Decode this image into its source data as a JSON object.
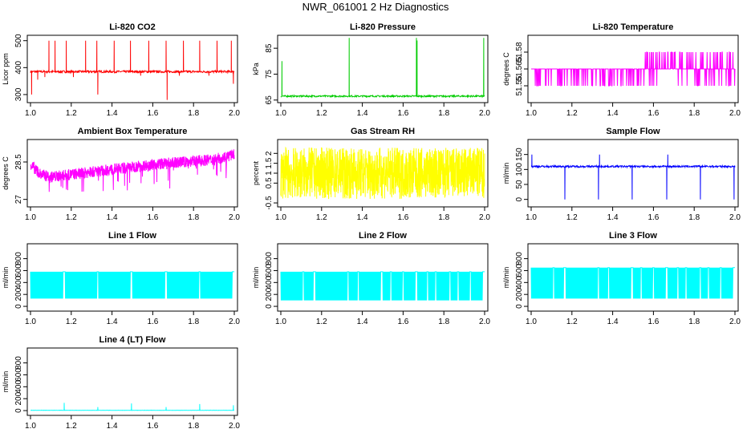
{
  "title": "NWR_061001  2 Hz Diagnostics",
  "chart_data": [
    {
      "type": "line",
      "title": "Li-820 CO2",
      "xlabel": "",
      "ylabel": "Licor ppm",
      "xlim": [
        1.0,
        2.0
      ],
      "xticks": [
        1.0,
        1.2,
        1.4,
        1.6,
        1.8,
        2.0
      ],
      "ylim": [
        270,
        520
      ],
      "yticks": [
        300,
        400,
        500
      ],
      "series": [
        {
          "color": "#ff0000",
          "baseline": 385,
          "noise": 4,
          "spikes": [
            [
              1.005,
              300
            ],
            [
              1.035,
              355
            ],
            [
              1.07,
              365
            ],
            [
              1.09,
              500
            ],
            [
              1.12,
              500
            ],
            [
              1.175,
              500
            ],
            [
              1.21,
              365
            ],
            [
              1.27,
              500
            ],
            [
              1.325,
              500
            ],
            [
              1.33,
              300
            ],
            [
              1.41,
              500
            ],
            [
              1.49,
              500
            ],
            [
              1.54,
              370
            ],
            [
              1.58,
              500
            ],
            [
              1.665,
              500
            ],
            [
              1.67,
              280
            ],
            [
              1.73,
              370
            ],
            [
              1.75,
              500
            ],
            [
              1.83,
              500
            ],
            [
              1.875,
              370
            ],
            [
              1.915,
              500
            ],
            [
              1.985,
              500
            ],
            [
              1.995,
              340
            ]
          ]
        }
      ]
    },
    {
      "type": "line",
      "title": "Li-820 Pressure",
      "xlabel": "",
      "ylabel": "kPa",
      "xlim": [
        1.0,
        2.0
      ],
      "xticks": [
        1.0,
        1.2,
        1.4,
        1.6,
        1.8,
        2.0
      ],
      "ylim": [
        64,
        90
      ],
      "yticks": [
        65,
        75,
        85
      ],
      "series": [
        {
          "color": "#00cc00",
          "baseline": 66.5,
          "noise": 0.3,
          "spikes": [
            [
              1.005,
              80
            ],
            [
              1.335,
              89
            ],
            [
              1.665,
              89
            ],
            [
              1.668,
              88
            ],
            [
              1.995,
              89
            ]
          ]
        }
      ]
    },
    {
      "type": "line",
      "title": "Li-820 Temperature",
      "xlabel": "",
      "ylabel": "degrees C",
      "xlim": [
        1.0,
        2.0
      ],
      "xticks": [
        1.0,
        1.2,
        1.4,
        1.6,
        1.8,
        2.0
      ],
      "ylim": [
        51.535,
        51.595
      ],
      "yticks": [
        51.55,
        51.565,
        51.58
      ],
      "series": [
        {
          "color": "#ff00ff",
          "baseline": 51.565,
          "noise": 0,
          "levels": [
            51.55,
            51.565,
            51.58
          ]
        }
      ]
    },
    {
      "type": "line",
      "title": "Ambient Box Temperature",
      "xlabel": "",
      "ylabel": "degrees C",
      "xlim": [
        1.0,
        2.0
      ],
      "xticks": [
        1.0,
        1.2,
        1.4,
        1.6,
        1.8,
        2.0
      ],
      "ylim": [
        26.7,
        29.4
      ],
      "yticks": [
        27.0,
        28.5
      ],
      "series": [
        {
          "color": "#ff00ff",
          "trend": [
            [
              1.0,
              28.4
            ],
            [
              1.05,
              28.0
            ],
            [
              1.1,
              27.9
            ],
            [
              1.3,
              28.1
            ],
            [
              1.6,
              28.4
            ],
            [
              1.9,
              28.6
            ],
            [
              2.0,
              28.8
            ]
          ],
          "noise": 0.45
        }
      ]
    },
    {
      "type": "line",
      "title": "Gas Stream RH",
      "xlabel": "",
      "ylabel": "percent",
      "xlim": [
        1.0,
        2.0
      ],
      "xticks": [
        1.0,
        1.2,
        1.4,
        1.6,
        1.8,
        2.0
      ],
      "ylim": [
        -0.7,
        2.7
      ],
      "yticks": [
        -0.5,
        0.5,
        1.0,
        1.5,
        2.0
      ],
      "series": [
        {
          "color": "#ffff00",
          "baseline": 1.0,
          "noise": 1.3
        }
      ]
    },
    {
      "type": "line",
      "title": "Sample Flow",
      "xlabel": "",
      "ylabel": "ml/min",
      "xlim": [
        1.0,
        2.0
      ],
      "xticks": [
        1.0,
        1.2,
        1.4,
        1.6,
        1.8,
        2.0
      ],
      "ylim": [
        -25,
        200
      ],
      "yticks": [
        0,
        50,
        100,
        150
      ],
      "series": [
        {
          "color": "#0000ff",
          "baseline": 110,
          "noise": 3,
          "spikes": [
            [
              1.003,
              150
            ],
            [
              1.165,
              0
            ],
            [
              1.33,
              0
            ],
            [
              1.335,
              150
            ],
            [
              1.495,
              0
            ],
            [
              1.665,
              0
            ],
            [
              1.67,
              150
            ],
            [
              1.83,
              0
            ],
            [
              1.995,
              0
            ]
          ]
        }
      ]
    },
    {
      "type": "line",
      "title": "Line 1 Flow",
      "xlabel": "",
      "ylabel": "ml/min",
      "xlim": [
        1.0,
        2.0
      ],
      "xticks": [
        1.0,
        1.2,
        1.4,
        1.6,
        1.8,
        2.0
      ],
      "ylim": [
        -80,
        1050
      ],
      "yticks": [
        0,
        200,
        400,
        600,
        800
      ],
      "series": [
        {
          "color": "#00ffff",
          "band": [
            130,
            580
          ],
          "gaps": [
            1.165,
            1.33,
            1.495,
            1.665,
            1.83,
            1.995
          ]
        }
      ]
    },
    {
      "type": "line",
      "title": "Line 2 Flow",
      "xlabel": "",
      "ylabel": "ml/min",
      "xlim": [
        1.0,
        2.0
      ],
      "xticks": [
        1.0,
        1.2,
        1.4,
        1.6,
        1.8,
        2.0
      ],
      "ylim": [
        -80,
        1050
      ],
      "yticks": [
        0,
        200,
        400,
        600,
        800
      ],
      "series": [
        {
          "color": "#00ffff",
          "band": [
            100,
            580
          ],
          "gaps": [
            1.11,
            1.165,
            1.33,
            1.38,
            1.495,
            1.54,
            1.6,
            1.665,
            1.72,
            1.76,
            1.83,
            1.87,
            1.93,
            1.995
          ]
        }
      ]
    },
    {
      "type": "line",
      "title": "Line 3 Flow",
      "xlabel": "",
      "ylabel": "ml/min",
      "xlim": [
        1.0,
        2.0
      ],
      "xticks": [
        1.0,
        1.2,
        1.4,
        1.6,
        1.8,
        2.0
      ],
      "ylim": [
        -80,
        1050
      ],
      "yticks": [
        0,
        200,
        400,
        600,
        800
      ],
      "series": [
        {
          "color": "#00ffff",
          "band": [
            130,
            650
          ],
          "gaps": [
            1.11,
            1.165,
            1.33,
            1.38,
            1.495,
            1.54,
            1.6,
            1.665,
            1.72,
            1.76,
            1.83,
            1.87,
            1.93,
            1.995
          ]
        }
      ]
    },
    {
      "type": "line",
      "title": "Line 4 (LT) Flow",
      "xlabel": "",
      "ylabel": "ml/min",
      "xlim": [
        1.0,
        2.0
      ],
      "xticks": [
        1.0,
        1.2,
        1.4,
        1.6,
        1.8,
        2.0
      ],
      "ylim": [
        -80,
        1050
      ],
      "yticks": [
        0,
        200,
        400,
        600,
        800
      ],
      "series": [
        {
          "color": "#00ffff",
          "baseline": 5,
          "noise": 2,
          "spikes": [
            [
              1.165,
              130
            ],
            [
              1.33,
              60
            ],
            [
              1.495,
              120
            ],
            [
              1.665,
              60
            ],
            [
              1.83,
              110
            ],
            [
              1.995,
              90
            ]
          ]
        }
      ]
    }
  ]
}
